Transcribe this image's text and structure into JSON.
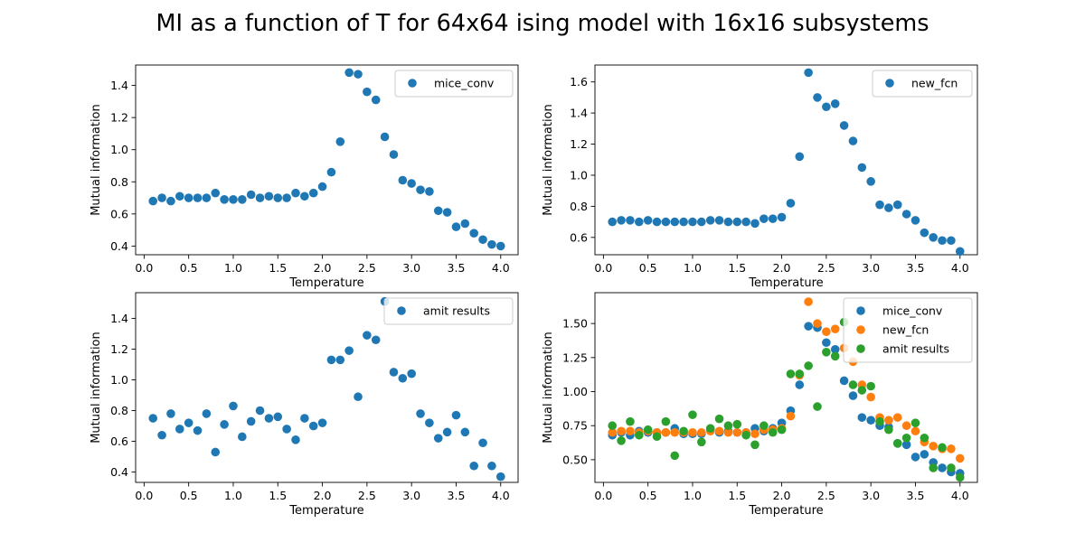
{
  "suptitle": "MI as a function of T for 64x64 ising model with 16x16 subsystems",
  "colors": {
    "blue": "#1f77b4",
    "orange": "#ff7f0e",
    "green": "#2ca02c"
  },
  "chart_data": [
    {
      "type": "scatter",
      "xlabel": "Temperature",
      "ylabel": "Mutual information",
      "xlim": [
        -0.095,
        4.195
      ],
      "ylim": [
        0.346,
        1.527
      ],
      "xticks": [
        0.0,
        0.5,
        1.0,
        1.5,
        2.0,
        2.5,
        3.0,
        3.5,
        4.0
      ],
      "xtick_labels": [
        "0.0",
        "0.5",
        "1.0",
        "1.5",
        "2.0",
        "2.5",
        "3.0",
        "3.5",
        "4.0"
      ],
      "yticks": [
        0.4,
        0.6,
        0.8,
        1.0,
        1.2,
        1.4
      ],
      "ytick_labels": [
        "0.4",
        "0.6",
        "0.8",
        "1.0",
        "1.2",
        "1.4"
      ],
      "legend_position": "upper right",
      "series": [
        {
          "name": "mice_conv",
          "color": "#1f77b4",
          "x": [
            0.1,
            0.2,
            0.3,
            0.4,
            0.5,
            0.6,
            0.7,
            0.8,
            0.9,
            1.0,
            1.1,
            1.2,
            1.3,
            1.4,
            1.5,
            1.6,
            1.7,
            1.8,
            1.9,
            2.0,
            2.1,
            2.2,
            2.3,
            2.4,
            2.5,
            2.6,
            2.7,
            2.8,
            2.9,
            3.0,
            3.1,
            3.2,
            3.3,
            3.4,
            3.5,
            3.6,
            3.7,
            3.8,
            3.9,
            4.0
          ],
          "y": [
            0.68,
            0.7,
            0.68,
            0.71,
            0.7,
            0.7,
            0.7,
            0.73,
            0.69,
            0.69,
            0.69,
            0.72,
            0.7,
            0.71,
            0.7,
            0.7,
            0.73,
            0.71,
            0.73,
            0.77,
            0.86,
            1.05,
            1.48,
            1.47,
            1.36,
            1.31,
            1.08,
            0.97,
            0.81,
            0.79,
            0.75,
            0.74,
            0.62,
            0.61,
            0.52,
            0.54,
            0.48,
            0.44,
            0.41,
            0.4
          ]
        }
      ]
    },
    {
      "type": "scatter",
      "xlabel": "Temperature",
      "ylabel": "Mutual information",
      "xlim": [
        -0.095,
        4.195
      ],
      "ylim": [
        0.4885,
        1.7087
      ],
      "xticks": [
        0.0,
        0.5,
        1.0,
        1.5,
        2.0,
        2.5,
        3.0,
        3.5,
        4.0
      ],
      "xtick_labels": [
        "0.0",
        "0.5",
        "1.0",
        "1.5",
        "2.0",
        "2.5",
        "3.0",
        "3.5",
        "4.0"
      ],
      "yticks": [
        0.6,
        0.8,
        1.0,
        1.2,
        1.4,
        1.6
      ],
      "ytick_labels": [
        "0.6",
        "0.8",
        "1.0",
        "1.2",
        "1.4",
        "1.6"
      ],
      "legend_position": "upper right",
      "series": [
        {
          "name": "new_fcn",
          "color": "#1f77b4",
          "x": [
            0.1,
            0.2,
            0.3,
            0.4,
            0.5,
            0.6,
            0.7,
            0.8,
            0.9,
            1.0,
            1.1,
            1.2,
            1.3,
            1.4,
            1.5,
            1.6,
            1.7,
            1.8,
            1.9,
            2.0,
            2.1,
            2.2,
            2.3,
            2.4,
            2.5,
            2.6,
            2.7,
            2.8,
            2.9,
            3.0,
            3.1,
            3.2,
            3.3,
            3.4,
            3.5,
            3.6,
            3.7,
            3.8,
            3.9,
            4.0
          ],
          "y": [
            0.7,
            0.71,
            0.71,
            0.7,
            0.71,
            0.7,
            0.7,
            0.7,
            0.7,
            0.7,
            0.7,
            0.71,
            0.71,
            0.7,
            0.7,
            0.7,
            0.69,
            0.72,
            0.72,
            0.73,
            0.82,
            1.12,
            1.66,
            1.5,
            1.44,
            1.46,
            1.32,
            1.22,
            1.05,
            0.96,
            0.81,
            0.79,
            0.81,
            0.75,
            0.71,
            0.63,
            0.6,
            0.58,
            0.58,
            0.51
          ]
        }
      ]
    },
    {
      "type": "scatter",
      "xlabel": "Temperature",
      "ylabel": "Mutual information",
      "xlim": [
        -0.095,
        4.195
      ],
      "ylim": [
        0.333,
        1.567
      ],
      "xticks": [
        0.0,
        0.5,
        1.0,
        1.5,
        2.0,
        2.5,
        3.0,
        3.5,
        4.0
      ],
      "xtick_labels": [
        "0.0",
        "0.5",
        "1.0",
        "1.5",
        "2.0",
        "2.5",
        "3.0",
        "3.5",
        "4.0"
      ],
      "yticks": [
        0.4,
        0.6,
        0.8,
        1.0,
        1.2,
        1.4
      ],
      "ytick_labels": [
        "0.4",
        "0.6",
        "0.8",
        "1.0",
        "1.2",
        "1.4"
      ],
      "legend_position": "upper right",
      "series": [
        {
          "name": "amit results",
          "color": "#1f77b4",
          "x": [
            0.1,
            0.2,
            0.3,
            0.4,
            0.5,
            0.6,
            0.7,
            0.8,
            0.9,
            1.0,
            1.1,
            1.2,
            1.3,
            1.4,
            1.5,
            1.6,
            1.7,
            1.8,
            1.9,
            2.0,
            2.1,
            2.2,
            2.3,
            2.4,
            2.5,
            2.6,
            2.7,
            2.8,
            2.9,
            3.0,
            3.1,
            3.2,
            3.3,
            3.4,
            3.5,
            3.6,
            3.7,
            3.8,
            3.9,
            4.0
          ],
          "y": [
            0.75,
            0.64,
            0.78,
            0.68,
            0.72,
            0.67,
            0.78,
            0.53,
            0.71,
            0.83,
            0.63,
            0.73,
            0.8,
            0.75,
            0.76,
            0.68,
            0.61,
            0.75,
            0.7,
            0.72,
            1.13,
            1.13,
            1.19,
            0.89,
            1.29,
            1.26,
            1.51,
            1.05,
            1.01,
            1.04,
            0.78,
            0.72,
            0.62,
            0.66,
            0.77,
            0.66,
            0.44,
            0.59,
            0.44,
            0.37
          ]
        }
      ]
    },
    {
      "type": "scatter",
      "xlabel": "Temperature",
      "ylabel": "Mutual information",
      "xlim": [
        -0.095,
        4.195
      ],
      "ylim": [
        0.3335,
        1.7265
      ],
      "xticks": [
        0.0,
        0.5,
        1.0,
        1.5,
        2.0,
        2.5,
        3.0,
        3.5,
        4.0
      ],
      "xtick_labels": [
        "0.0",
        "0.5",
        "1.0",
        "1.5",
        "2.0",
        "2.5",
        "3.0",
        "3.5",
        "4.0"
      ],
      "yticks": [
        0.5,
        0.75,
        1.0,
        1.25,
        1.5
      ],
      "ytick_labels": [
        "0.50",
        "0.75",
        "1.00",
        "1.25",
        "1.50"
      ],
      "legend_position": "upper right",
      "series": [
        {
          "name": "mice_conv",
          "color": "#1f77b4",
          "x": [
            0.1,
            0.2,
            0.3,
            0.4,
            0.5,
            0.6,
            0.7,
            0.8,
            0.9,
            1.0,
            1.1,
            1.2,
            1.3,
            1.4,
            1.5,
            1.6,
            1.7,
            1.8,
            1.9,
            2.0,
            2.1,
            2.2,
            2.3,
            2.4,
            2.5,
            2.6,
            2.7,
            2.8,
            2.9,
            3.0,
            3.1,
            3.2,
            3.3,
            3.4,
            3.5,
            3.6,
            3.7,
            3.8,
            3.9,
            4.0
          ],
          "y": [
            0.68,
            0.7,
            0.68,
            0.71,
            0.7,
            0.7,
            0.7,
            0.73,
            0.69,
            0.69,
            0.69,
            0.72,
            0.7,
            0.71,
            0.7,
            0.7,
            0.73,
            0.71,
            0.73,
            0.77,
            0.86,
            1.05,
            1.48,
            1.47,
            1.36,
            1.31,
            1.08,
            0.97,
            0.81,
            0.79,
            0.75,
            0.74,
            0.62,
            0.61,
            0.52,
            0.54,
            0.48,
            0.44,
            0.41,
            0.4
          ]
        },
        {
          "name": "new_fcn",
          "color": "#ff7f0e",
          "x": [
            0.1,
            0.2,
            0.3,
            0.4,
            0.5,
            0.6,
            0.7,
            0.8,
            0.9,
            1.0,
            1.1,
            1.2,
            1.3,
            1.4,
            1.5,
            1.6,
            1.7,
            1.8,
            1.9,
            2.0,
            2.1,
            2.2,
            2.3,
            2.4,
            2.5,
            2.6,
            2.7,
            2.8,
            2.9,
            3.0,
            3.1,
            3.2,
            3.3,
            3.4,
            3.5,
            3.6,
            3.7,
            3.8,
            3.9,
            4.0
          ],
          "y": [
            0.7,
            0.71,
            0.71,
            0.7,
            0.71,
            0.7,
            0.7,
            0.7,
            0.7,
            0.7,
            0.7,
            0.71,
            0.71,
            0.7,
            0.7,
            0.7,
            0.69,
            0.72,
            0.72,
            0.73,
            0.82,
            1.12,
            1.66,
            1.5,
            1.44,
            1.46,
            1.32,
            1.22,
            1.05,
            0.96,
            0.81,
            0.79,
            0.81,
            0.75,
            0.71,
            0.63,
            0.6,
            0.58,
            0.58,
            0.51
          ]
        },
        {
          "name": "amit results",
          "color": "#2ca02c",
          "x": [
            0.1,
            0.2,
            0.3,
            0.4,
            0.5,
            0.6,
            0.7,
            0.8,
            0.9,
            1.0,
            1.1,
            1.2,
            1.3,
            1.4,
            1.5,
            1.6,
            1.7,
            1.8,
            1.9,
            2.0,
            2.1,
            2.2,
            2.3,
            2.4,
            2.5,
            2.6,
            2.7,
            2.8,
            2.9,
            3.0,
            3.1,
            3.2,
            3.3,
            3.4,
            3.5,
            3.6,
            3.7,
            3.8,
            3.9,
            4.0
          ],
          "y": [
            0.75,
            0.64,
            0.78,
            0.68,
            0.72,
            0.67,
            0.78,
            0.53,
            0.71,
            0.83,
            0.63,
            0.73,
            0.8,
            0.75,
            0.76,
            0.68,
            0.61,
            0.75,
            0.7,
            0.72,
            1.13,
            1.13,
            1.19,
            0.89,
            1.29,
            1.26,
            1.51,
            1.05,
            1.01,
            1.04,
            0.78,
            0.72,
            0.62,
            0.66,
            0.77,
            0.66,
            0.44,
            0.59,
            0.44,
            0.37
          ]
        }
      ]
    }
  ]
}
